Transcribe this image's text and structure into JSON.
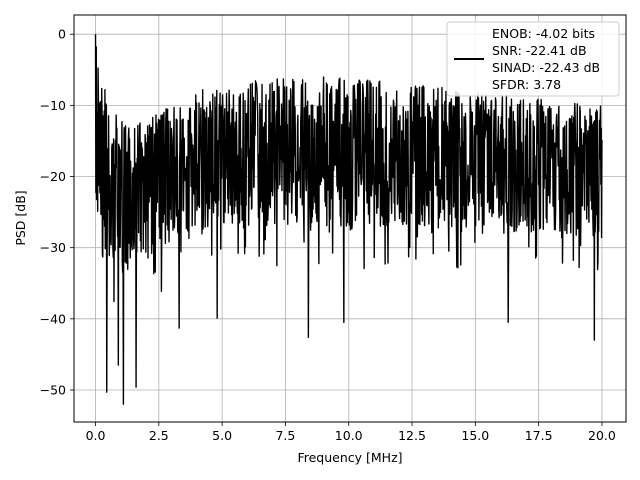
{
  "chart_data": {
    "type": "line",
    "title": "",
    "xlabel": "Frequency [MHz]",
    "ylabel": "PSD [dB]",
    "xlim": [
      -0.85,
      20.95
    ],
    "ylim": [
      -54.5,
      2.7
    ],
    "xticks": [
      0.0,
      2.5,
      5.0,
      7.5,
      10.0,
      12.5,
      15.0,
      17.5,
      20.0
    ],
    "xtick_labels": [
      "0.0",
      "2.5",
      "5.0",
      "7.5",
      "10.0",
      "12.5",
      "15.0",
      "17.5",
      "20.0"
    ],
    "yticks": [
      0,
      -10,
      -20,
      -30,
      -40,
      -50
    ],
    "ytick_labels": [
      "0",
      "−10",
      "−20",
      "−30",
      "−40",
      "−50"
    ],
    "grid": true,
    "legend_position": "top-right",
    "legend": [
      "ENOB: -4.02 bits",
      "SNR: -22.41 dB",
      "SINAD: -22.43 dB",
      "SFDR: 3.78"
    ],
    "series": [
      {
        "color": "#000000",
        "x_start": 0.0,
        "x_end": 20.0,
        "num_points": 1400,
        "envelope_x": [
          0.0,
          0.5,
          1.0,
          2.0,
          3.0,
          4.0,
          5.0,
          7.5,
          10.0,
          12.5,
          15.0,
          17.5,
          20.0
        ],
        "envelope_top": [
          0.0,
          -10,
          -12,
          -12,
          -10,
          -8,
          -7,
          -6,
          -6,
          -7,
          -8,
          -9,
          -10
        ],
        "envelope_mid": [
          -15,
          -20,
          -21,
          -20,
          -19,
          -18,
          -17,
          -17,
          -17,
          -17.5,
          -18,
          -18.5,
          -19
        ],
        "envelope_bottom": [
          -25,
          -33,
          -35,
          -32,
          -30,
          -28,
          -27,
          -27,
          -27,
          -27,
          -28,
          -28,
          -29
        ],
        "spikes": [
          {
            "x": 0.45,
            "y": -50.3
          },
          {
            "x": 0.9,
            "y": -46.5
          },
          {
            "x": 1.1,
            "y": -52.0
          },
          {
            "x": 1.6,
            "y": -49.6
          },
          {
            "x": 3.3,
            "y": -41.3
          },
          {
            "x": 4.8,
            "y": -39.9
          },
          {
            "x": 8.4,
            "y": -42.6
          },
          {
            "x": 9.8,
            "y": -40.5
          },
          {
            "x": 16.3,
            "y": -40.5
          },
          {
            "x": 19.7,
            "y": -43.0
          }
        ]
      }
    ]
  },
  "colors": {
    "line": "#000000",
    "grid": "#b0b0b0",
    "legend_border": "#cccccc"
  }
}
